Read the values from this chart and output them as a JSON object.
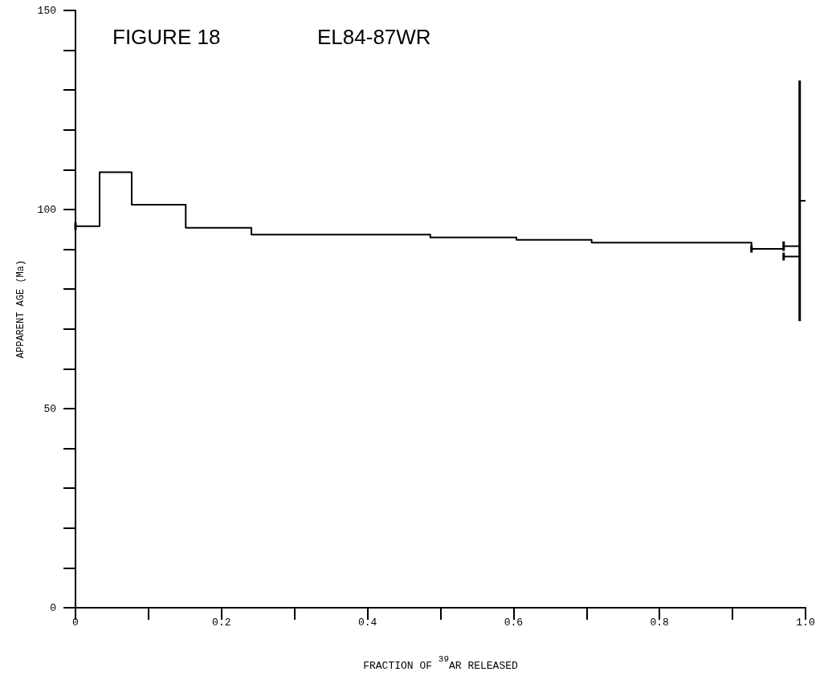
{
  "chart_data": {
    "type": "step",
    "title": "FIGURE 18",
    "subtitle": "EL84-87WR",
    "xlabel": "FRACTION OF $^{39}$AR RELEASED",
    "ylabel": "APPARENT AGE (Ma)",
    "series": [
      {
        "color": "#000000",
        "x": [
          0,
          0.033,
          0.077,
          0.151,
          0.241,
          0.486,
          0.604,
          0.707,
          0.926,
          0.97
        ],
        "values": [
          95.8,
          109.4,
          101.2,
          95.4,
          93.7,
          93.0,
          92.4,
          91.7,
          90.1,
          90.1
        ],
        "errors": [
          1.0,
          null,
          null,
          null,
          null,
          null,
          null,
          null,
          0.9,
          null
        ]
      },
      {
        "color": "#000000",
        "x": [
          0.97,
          0.992
        ],
        "values": [
          90.8,
          90.8
        ],
        "errors": [
          1.2,
          null
        ]
      },
      {
        "color": "#000000",
        "x": [
          0.97,
          0.992
        ],
        "values": [
          88.2,
          88.2
        ],
        "errors": [
          1.0,
          null
        ]
      },
      {
        "color": "#000000",
        "x": [
          0.992,
          1.0
        ],
        "values": [
          102.2,
          102.2
        ],
        "errors": [
          30.2,
          null
        ]
      }
    ],
    "xlim": [
      0,
      1
    ],
    "xticks": [
      0,
      {
        "value": 0.1,
        "label": null
      },
      0.2,
      {
        "value": 0.3,
        "label": null
      },
      0.4,
      {
        "value": 0.5,
        "label": null
      },
      0.6,
      {
        "value": 0.7,
        "label": null
      },
      0.8,
      {
        "value": 0.9,
        "label": null
      },
      {
        "value": 1,
        "label": "1.0"
      }
    ],
    "ylim": [
      0,
      150
    ],
    "yticks": [
      0,
      {
        "value": 10,
        "label": null
      },
      {
        "value": 20,
        "label": null
      },
      {
        "value": 30,
        "label": null
      },
      {
        "value": 40,
        "label": null
      },
      50,
      {
        "value": 60,
        "label": null
      },
      {
        "value": 70,
        "label": null
      },
      {
        "value": 80,
        "label": null
      },
      {
        "value": 90,
        "label": null
      },
      100,
      {
        "value": 110,
        "label": null
      },
      {
        "value": 120,
        "label": null
      },
      {
        "value": 130,
        "label": null
      },
      {
        "value": 140,
        "label": null
      },
      150
    ],
    "grid": false,
    "line_style": "solid"
  }
}
